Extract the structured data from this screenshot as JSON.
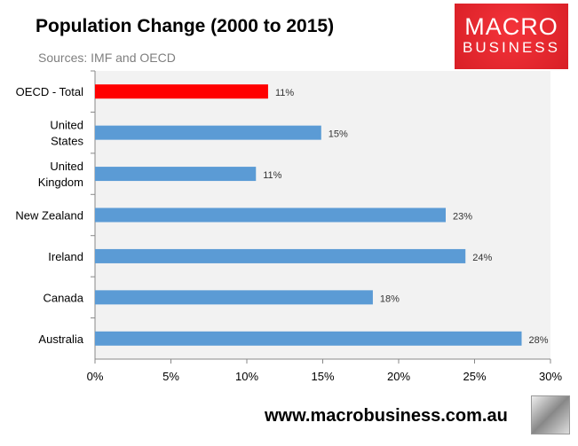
{
  "title": "Population Change (2000 to 2015)",
  "subtitle": "Sources: IMF and OECD",
  "logo": {
    "line1": "MACRO",
    "line2": "BUSINESS"
  },
  "footer": "www.macrobusiness.com.au",
  "colors": {
    "highlight": "#ff0000",
    "bar": "#5b9bd5",
    "plot_bg": "#f2f2f2"
  },
  "chart_data": {
    "type": "bar",
    "orientation": "horizontal",
    "title": "Population Change (2000 to 2015)",
    "categories": [
      [
        "OECD - Total"
      ],
      [
        "United",
        "States"
      ],
      [
        "United",
        "Kingdom"
      ],
      [
        "New Zealand"
      ],
      [
        "Ireland"
      ],
      [
        "Canada"
      ],
      [
        "Australia"
      ]
    ],
    "values": [
      11.4,
      14.9,
      10.6,
      23.1,
      24.4,
      18.3,
      28.1
    ],
    "data_labels": [
      "11%",
      "15%",
      "11%",
      "23%",
      "24%",
      "18%",
      "28%"
    ],
    "xlim": [
      0,
      30
    ],
    "xticks": [
      "0%",
      "5%",
      "10%",
      "15%",
      "20%",
      "25%",
      "30%"
    ],
    "xlabel": "",
    "ylabel": "",
    "grid": false,
    "highlight_index": 0
  }
}
